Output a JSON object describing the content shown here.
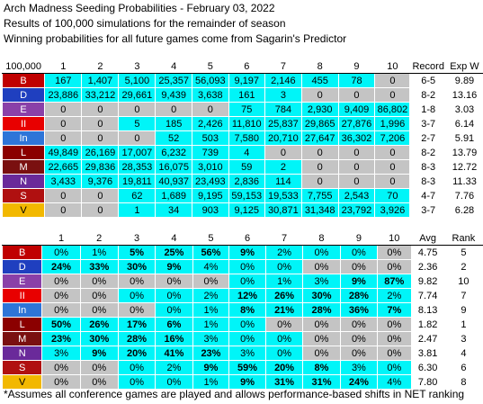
{
  "title": "Arch Madness Seeding Probabilities - February 03, 2022",
  "subtitle1": "Results of 100,000 simulations for the remainder of season",
  "subtitle2": "Winning probabilities for all future games come from Sagarin's Predictor",
  "footnote": "*Assumes all conference games are played and allows performance-based shifts in NET ranking",
  "colors": {
    "highlight": "#00f5f8",
    "gray": "#c4c4c4"
  },
  "teams": [
    {
      "label": "B",
      "bg": "#c00000",
      "fg": "#ffffff"
    },
    {
      "label": "D",
      "bg": "#1f3fbf",
      "fg": "#ffffff"
    },
    {
      "label": "E",
      "bg": "#8a40a8",
      "fg": "#ffffff"
    },
    {
      "label": "II",
      "bg": "#e80000",
      "fg": "#ffffff"
    },
    {
      "label": "In",
      "bg": "#2e75d8",
      "fg": "#ffffff"
    },
    {
      "label": "L",
      "bg": "#8b0000",
      "fg": "#ffffff"
    },
    {
      "label": "M",
      "bg": "#7a1010",
      "fg": "#ffffff"
    },
    {
      "label": "N",
      "bg": "#6a2a9a",
      "fg": "#ffffff"
    },
    {
      "label": "S",
      "bg": "#b01010",
      "fg": "#ffffff"
    },
    {
      "label": "V",
      "bg": "#f2b800",
      "fg": "#000000"
    }
  ],
  "chart_data": [
    {
      "type": "table",
      "corner": "100,000",
      "columns": [
        "1",
        "2",
        "3",
        "4",
        "5",
        "6",
        "7",
        "8",
        "9",
        "10"
      ],
      "extra_headers": [
        "Record",
        "Exp W"
      ],
      "rows": [
        {
          "team": "B",
          "values": [
            "167",
            "1,407",
            "5,100",
            "25,357",
            "56,093",
            "9,197",
            "2,146",
            "455",
            "78",
            "0"
          ],
          "record": "6-5",
          "extra": "9.89"
        },
        {
          "team": "D",
          "values": [
            "23,886",
            "33,212",
            "29,661",
            "9,439",
            "3,638",
            "161",
            "3",
            "0",
            "0",
            "0"
          ],
          "record": "8-2",
          "extra": "13.16"
        },
        {
          "team": "E",
          "values": [
            "0",
            "0",
            "0",
            "0",
            "0",
            "75",
            "784",
            "2,930",
            "9,409",
            "86,802"
          ],
          "record": "1-8",
          "extra": "3.03"
        },
        {
          "team": "II",
          "values": [
            "0",
            "0",
            "5",
            "185",
            "2,426",
            "11,810",
            "25,837",
            "29,865",
            "27,876",
            "1,996"
          ],
          "record": "3-7",
          "extra": "6.14"
        },
        {
          "team": "In",
          "values": [
            "0",
            "0",
            "0",
            "52",
            "503",
            "7,580",
            "20,710",
            "27,647",
            "36,302",
            "7,206"
          ],
          "record": "2-7",
          "extra": "5.91"
        },
        {
          "team": "L",
          "values": [
            "49,849",
            "26,169",
            "17,007",
            "6,232",
            "739",
            "4",
            "0",
            "0",
            "0",
            "0"
          ],
          "record": "8-2",
          "extra": "13.79"
        },
        {
          "team": "M",
          "values": [
            "22,665",
            "29,836",
            "28,353",
            "16,075",
            "3,010",
            "59",
            "2",
            "0",
            "0",
            "0"
          ],
          "record": "8-3",
          "extra": "12.72"
        },
        {
          "team": "N",
          "values": [
            "3,433",
            "9,376",
            "19,811",
            "40,937",
            "23,493",
            "2,836",
            "114",
            "0",
            "0",
            "0"
          ],
          "record": "8-3",
          "extra": "11.33"
        },
        {
          "team": "S",
          "values": [
            "0",
            "0",
            "62",
            "1,689",
            "9,195",
            "59,153",
            "19,533",
            "7,755",
            "2,543",
            "70"
          ],
          "record": "4-7",
          "extra": "7.76"
        },
        {
          "team": "V",
          "values": [
            "0",
            "0",
            "1",
            "34",
            "903",
            "9,125",
            "30,871",
            "31,348",
            "23,792",
            "3,926"
          ],
          "record": "3-7",
          "extra": "6.28"
        }
      ]
    },
    {
      "type": "table",
      "corner": "",
      "columns": [
        "1",
        "2",
        "3",
        "4",
        "5",
        "6",
        "7",
        "8",
        "9",
        "10"
      ],
      "extra_headers": [
        "Avg",
        "Rank"
      ],
      "rows": [
        {
          "team": "B",
          "values": [
            "0%",
            "1%",
            "5%",
            "25%",
            "56%",
            "9%",
            "2%",
            "0%",
            "0%",
            "0%"
          ],
          "avg": "4.75",
          "rank": "5"
        },
        {
          "team": "D",
          "values": [
            "24%",
            "33%",
            "30%",
            "9%",
            "4%",
            "0%",
            "0%",
            "0%",
            "0%",
            "0%"
          ],
          "avg": "2.36",
          "rank": "2"
        },
        {
          "team": "E",
          "values": [
            "0%",
            "0%",
            "0%",
            "0%",
            "0%",
            "0%",
            "1%",
            "3%",
            "9%",
            "87%"
          ],
          "avg": "9.82",
          "rank": "10"
        },
        {
          "team": "II",
          "values": [
            "0%",
            "0%",
            "0%",
            "0%",
            "2%",
            "12%",
            "26%",
            "30%",
            "28%",
            "2%"
          ],
          "avg": "7.74",
          "rank": "7"
        },
        {
          "team": "In",
          "values": [
            "0%",
            "0%",
            "0%",
            "0%",
            "1%",
            "8%",
            "21%",
            "28%",
            "36%",
            "7%"
          ],
          "avg": "8.13",
          "rank": "9"
        },
        {
          "team": "L",
          "values": [
            "50%",
            "26%",
            "17%",
            "6%",
            "1%",
            "0%",
            "0%",
            "0%",
            "0%",
            "0%"
          ],
          "avg": "1.82",
          "rank": "1"
        },
        {
          "team": "M",
          "values": [
            "23%",
            "30%",
            "28%",
            "16%",
            "3%",
            "0%",
            "0%",
            "0%",
            "0%",
            "0%"
          ],
          "avg": "2.47",
          "rank": "3"
        },
        {
          "team": "N",
          "values": [
            "3%",
            "9%",
            "20%",
            "41%",
            "23%",
            "3%",
            "0%",
            "0%",
            "0%",
            "0%"
          ],
          "avg": "3.81",
          "rank": "4"
        },
        {
          "team": "S",
          "values": [
            "0%",
            "0%",
            "0%",
            "2%",
            "9%",
            "59%",
            "20%",
            "8%",
            "3%",
            "0%"
          ],
          "avg": "6.30",
          "rank": "6"
        },
        {
          "team": "V",
          "values": [
            "0%",
            "0%",
            "0%",
            "0%",
            "1%",
            "9%",
            "31%",
            "31%",
            "24%",
            "4%"
          ],
          "avg": "7.80",
          "rank": "8"
        }
      ]
    }
  ]
}
